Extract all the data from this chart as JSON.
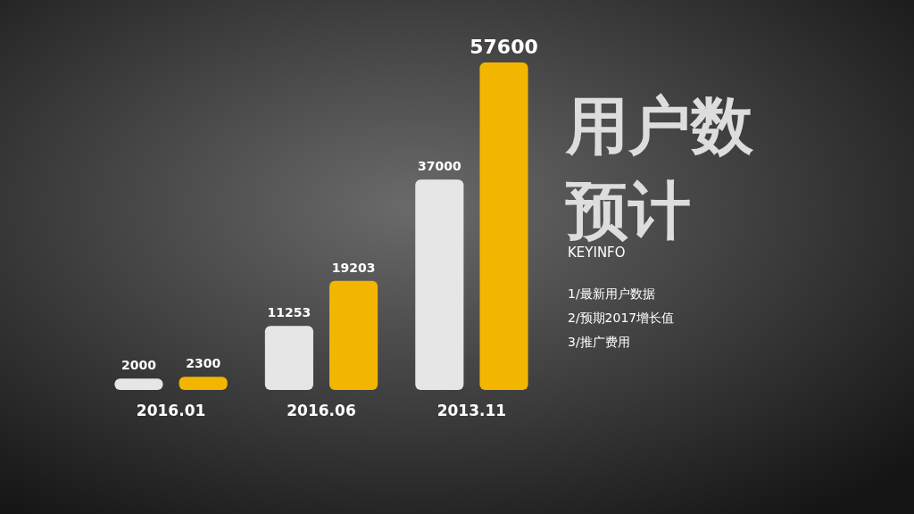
{
  "chart_data": {
    "type": "bar",
    "title": "用户数预计",
    "subtitle": "KEYINFO",
    "annotations": [
      "1/最新用户数据",
      "2/预期2017增长值",
      "3/推广费用"
    ],
    "categories": [
      "2016.01",
      "2016.06",
      "2013.11"
    ],
    "series": [
      {
        "color": "#e6e6e6",
        "values": [
          2000,
          11253,
          37000
        ]
      },
      {
        "color": "#f2b600",
        "values": [
          2300,
          19203,
          57600
        ]
      }
    ],
    "data_labels": true
  }
}
